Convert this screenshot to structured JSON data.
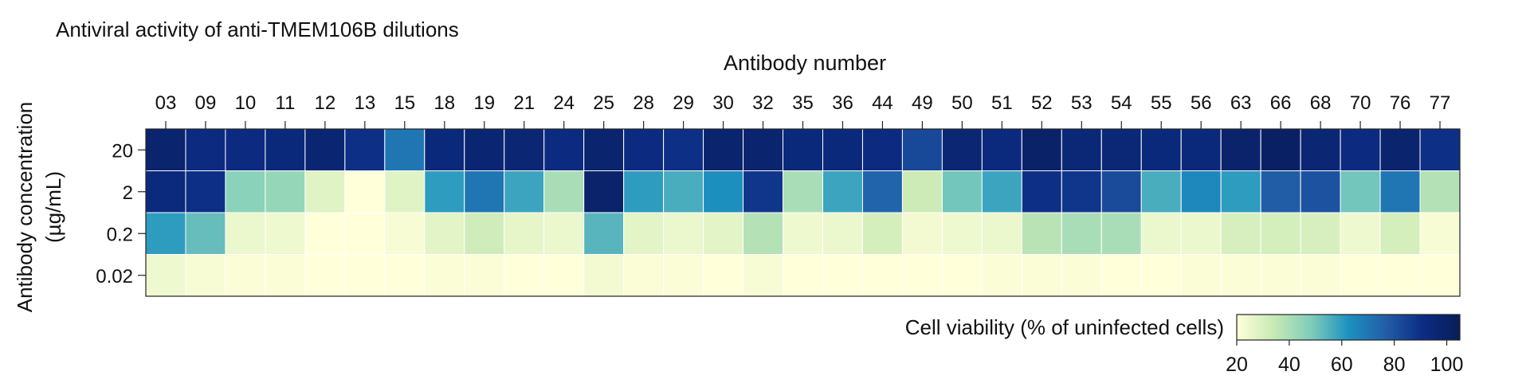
{
  "chart_data": {
    "type": "heatmap",
    "title": "Antiviral activity of anti-TMEM106B dilutions",
    "xlabel": "Antibody number",
    "ylabel": "Antibody concentration (µg/mL)",
    "ylabel_lines": [
      "Antibody concentration",
      "(µg/mL)"
    ],
    "columns": [
      "03",
      "09",
      "10",
      "11",
      "12",
      "13",
      "15",
      "18",
      "19",
      "21",
      "24",
      "25",
      "28",
      "29",
      "30",
      "32",
      "35",
      "36",
      "44",
      "49",
      "50",
      "51",
      "52",
      "53",
      "54",
      "55",
      "56",
      "63",
      "66",
      "68",
      "70",
      "76",
      "77"
    ],
    "rows": [
      "20",
      "2",
      "0.2",
      "0.02"
    ],
    "values": [
      [
        98,
        92,
        92,
        94,
        97,
        90,
        70,
        94,
        97,
        96,
        92,
        98,
        92,
        90,
        98,
        98,
        94,
        94,
        92,
        83,
        96,
        93,
        100,
        95,
        95,
        94,
        94,
        99,
        101,
        96,
        92,
        98,
        90
      ],
      [
        93,
        90,
        46,
        44,
        28,
        20,
        28,
        60,
        70,
        58,
        40,
        99,
        60,
        56,
        63,
        88,
        40,
        58,
        75,
        33,
        50,
        58,
        90,
        88,
        82,
        56,
        65,
        60,
        77,
        80,
        50,
        70,
        38
      ],
      [
        60,
        52,
        25,
        24,
        20,
        20,
        22,
        27,
        32,
        26,
        25,
        54,
        27,
        25,
        27,
        38,
        24,
        25,
        31,
        23,
        24,
        25,
        37,
        40,
        40,
        25,
        25,
        30,
        31,
        30,
        24,
        31,
        22
      ],
      [
        24,
        22,
        21,
        21,
        20,
        20,
        20,
        21,
        21,
        20,
        20,
        23,
        21,
        21,
        20,
        22,
        20,
        20,
        20,
        20,
        20,
        21,
        21,
        21,
        20,
        20,
        21,
        21,
        21,
        21,
        20,
        20,
        20
      ]
    ],
    "colorbar": {
      "label": "Cell viability (% of uninfected cells)",
      "min": 20,
      "max": 105,
      "ticks": [
        20,
        40,
        60,
        80,
        100
      ],
      "colors": [
        "#ffffd9",
        "#c7e9b4",
        "#7fcdbb",
        "#1d91c0",
        "#225ea8",
        "#0c2c84",
        "#081d58"
      ]
    },
    "grid": true
  }
}
